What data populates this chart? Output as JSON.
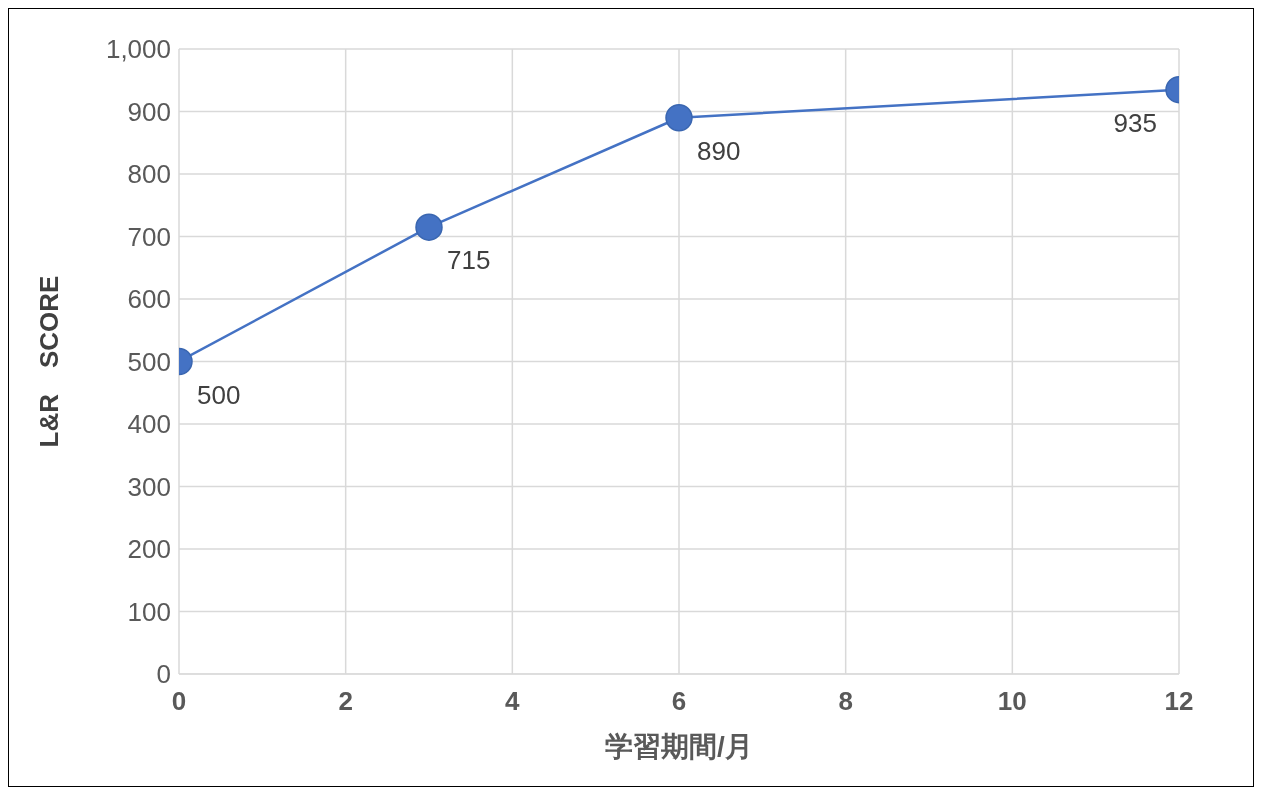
{
  "chart_data": {
    "type": "line",
    "xlabel": "学習期間/月",
    "ylabel": "L&R　SCORE",
    "x": [
      0,
      3,
      6,
      12
    ],
    "series": [
      {
        "color": "#4472c4",
        "values": [
          500,
          715,
          890,
          935
        ]
      }
    ],
    "xlim": [
      0,
      12
    ],
    "xticks": [
      0,
      2,
      4,
      6,
      8,
      10,
      12
    ],
    "ylim": [
      0,
      1000
    ],
    "yticks": [
      0,
      100,
      200,
      300,
      400,
      500,
      600,
      700,
      800,
      900,
      {
        "value": 1000,
        "label": "1,000"
      }
    ],
    "grid": true,
    "legend": false,
    "data_labels": true,
    "marker": "circle",
    "line_style": "solid"
  }
}
